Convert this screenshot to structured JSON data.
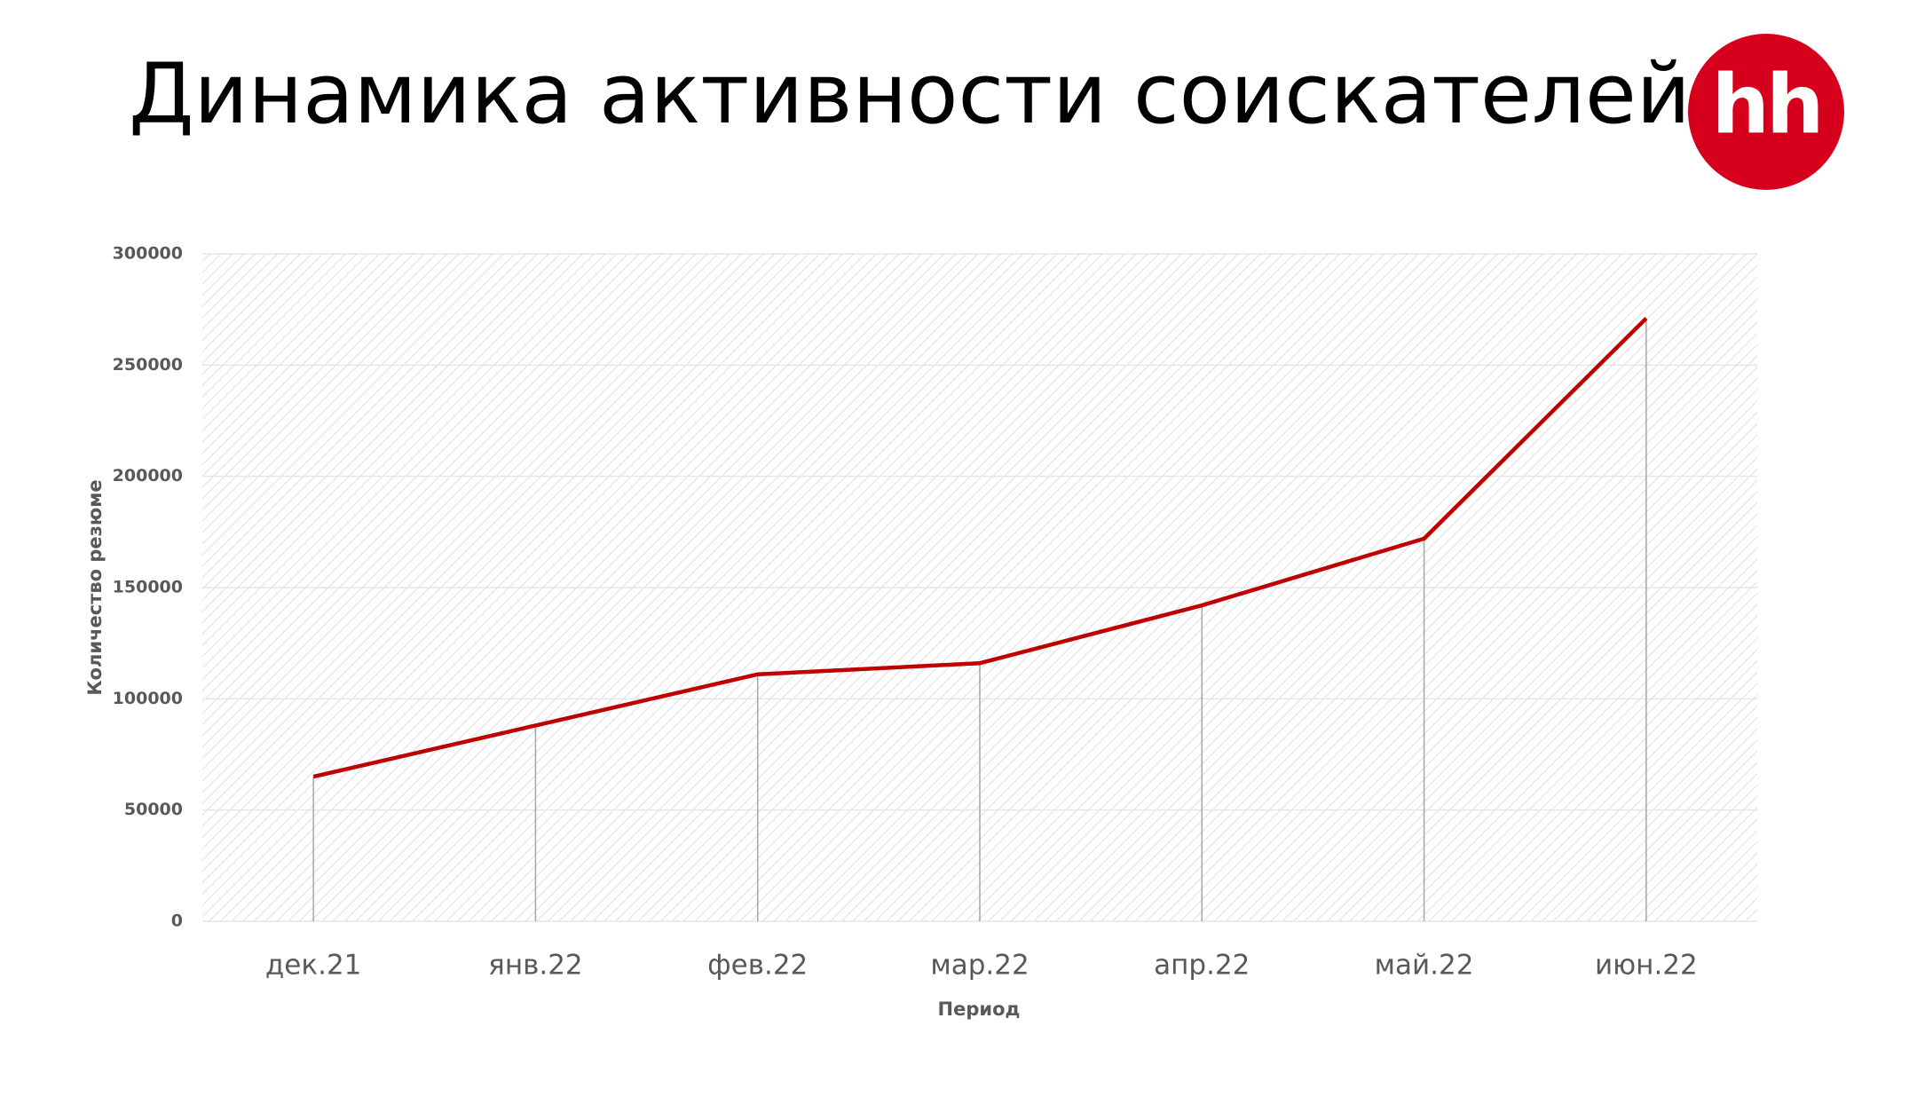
{
  "chart_data": {
    "type": "line",
    "title": "Динамика активности соискателей",
    "logo": "hh",
    "x_label": "Период",
    "y_label": "Количество резюме",
    "categories": [
      "дек.21",
      "янв.22",
      "фев.22",
      "мар.22",
      "апр.22",
      "май.22",
      "июн.22"
    ],
    "values": [
      65000,
      88000,
      111000,
      116000,
      142000,
      172000,
      271000
    ],
    "color": "#c00000",
    "drop_lines": true,
    "ylim": [
      0,
      300000
    ],
    "yticks": [
      0,
      50000,
      100000,
      150000,
      200000,
      250000,
      300000
    ],
    "grid": true
  }
}
